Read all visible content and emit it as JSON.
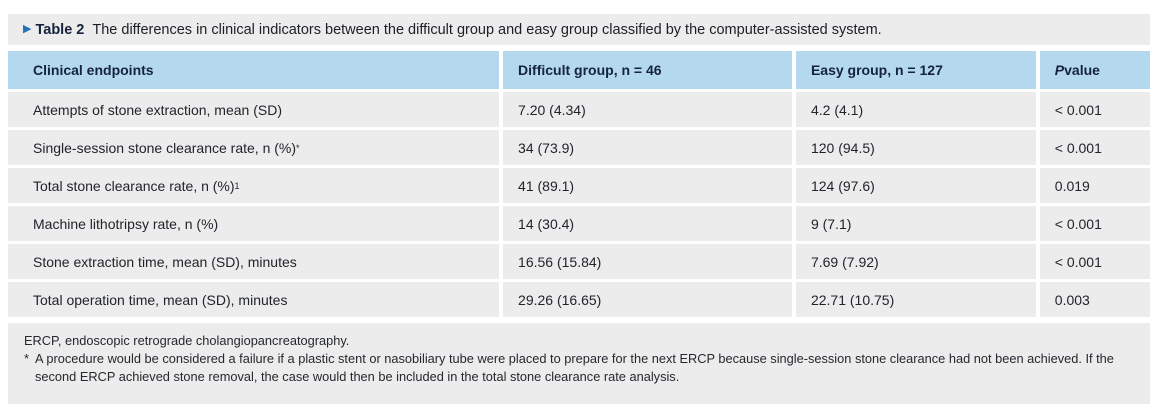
{
  "page": {
    "caption": {
      "marker": "▶",
      "label": "Table 2",
      "text": "The differences in clinical indicators between the difficult group and easy group classified by the computer-assisted system."
    },
    "header": {
      "col1": "Clinical endpoints",
      "col2": "Difficult group, n = 46",
      "col3": "Easy group, n = 127",
      "col4_italic": "P",
      "col4_rest": " value"
    },
    "rows": [
      {
        "endpoint": "Attempts of stone extraction, mean (SD)",
        "sup": "",
        "difficult": "7.20 (4.34)",
        "easy": "4.2 (4.1)",
        "p": "< 0.001"
      },
      {
        "endpoint": "Single-session stone clearance rate, n (%)",
        "sup": "*",
        "difficult": "34 (73.9)",
        "easy": "120 (94.5)",
        "p": "< 0.001"
      },
      {
        "endpoint": "Total stone clearance rate, n (%)",
        "sup": "1",
        "difficult": "41 (89.1)",
        "easy": "124 (97.6)",
        "p": "0.019"
      },
      {
        "endpoint": "Machine lithotripsy rate, n (%)",
        "sup": "",
        "difficult": "14 (30.4)",
        "easy": "9 (7.1)",
        "p": "< 0.001"
      },
      {
        "endpoint": "Stone extraction time, mean (SD), minutes",
        "sup": "",
        "difficult": "16.56 (15.84)",
        "easy": "7.69 (7.92)",
        "p": "< 0.001"
      },
      {
        "endpoint": "Total operation time, mean (SD), minutes",
        "sup": "",
        "difficult": "29.26 (16.65)",
        "easy": "22.71 (10.75)",
        "p": "0.003"
      }
    ],
    "footnotes": {
      "line1": "ERCP, endoscopic retrograde cholangiopancreatography.",
      "star_marker": "*",
      "star_text": "A procedure would be considered a failure if a plastic stent or nasobiliary tube were placed to prepare for the next ERCP because single-session stone clearance had not been achieved. If the second ERCP achieved stone removal, the case would then be included in the total stone clearance rate analysis."
    },
    "colors": {
      "header_bg": "#b4d8ee",
      "band_bg": "#ececec",
      "row_bg": "#ececec",
      "marker_blue": "#2272b9",
      "header_text": "#15233c",
      "body_text": "#21242b"
    }
  }
}
